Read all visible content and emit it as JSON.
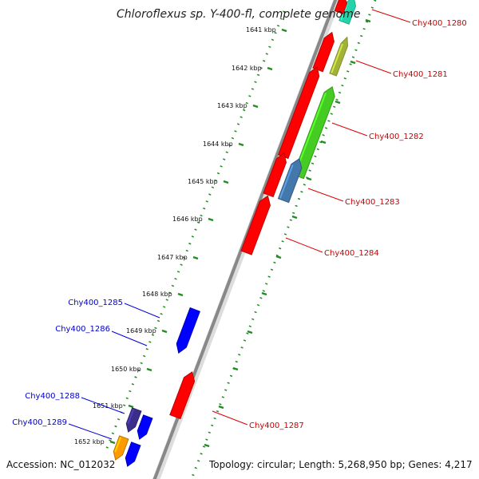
{
  "title": "Chloroflexus sp. Y-400-fl, complete genome",
  "footer": {
    "accession": "Accession: NC_012032",
    "summary": "Topology: circular; Length: 5,268,950 bp; Genes: 4,217"
  },
  "ruler": {
    "ticks": [
      "1641 kbp",
      "1642 kbp",
      "1643 kbp",
      "1644 kbp",
      "1645 kbp",
      "1646 kbp",
      "1647 kbp",
      "1648 kbp",
      "1649 kbp",
      "1650 kbp",
      "1651 kbp",
      "1652 kbp"
    ]
  },
  "genes": [
    {
      "id": "Chy400_1280",
      "strand": "+",
      "color": "#00cc99",
      "label_color": "#cc0000"
    },
    {
      "id": "Chy400_1281",
      "strand": "+",
      "color": "#ff0000",
      "label_color": "#cc0000"
    },
    {
      "id": "Chy400_1282",
      "strand": "+",
      "color": "#44cc22",
      "label_color": "#cc0000"
    },
    {
      "id": "Chy400_1283",
      "strand": "+",
      "color": "#4477aa",
      "label_color": "#cc0000"
    },
    {
      "id": "Chy400_1284",
      "strand": "+",
      "color": "#ff0000",
      "label_color": "#cc0000"
    },
    {
      "id": "Chy400_1285",
      "strand": "-",
      "color": "#0000ff",
      "label_color": "#0000cc"
    },
    {
      "id": "Chy400_1286",
      "strand": "-",
      "color": "#0000ff",
      "label_color": "#0000cc"
    },
    {
      "id": "Chy400_1287",
      "strand": "+",
      "color": "#ff0000",
      "label_color": "#cc0000"
    },
    {
      "id": "Chy400_1288",
      "strand": "-",
      "color": "#3a2e8a",
      "label_color": "#0000cc"
    },
    {
      "id": "Chy400_1289",
      "strand": "-",
      "color": "#ff9900",
      "label_color": "#0000cc"
    }
  ],
  "colors": {
    "backbone": "#888888",
    "tick_green": "#228b22",
    "kbp_tick": "#228b22",
    "leader_red": "#dd0000",
    "leader_blue": "#0000dd"
  }
}
